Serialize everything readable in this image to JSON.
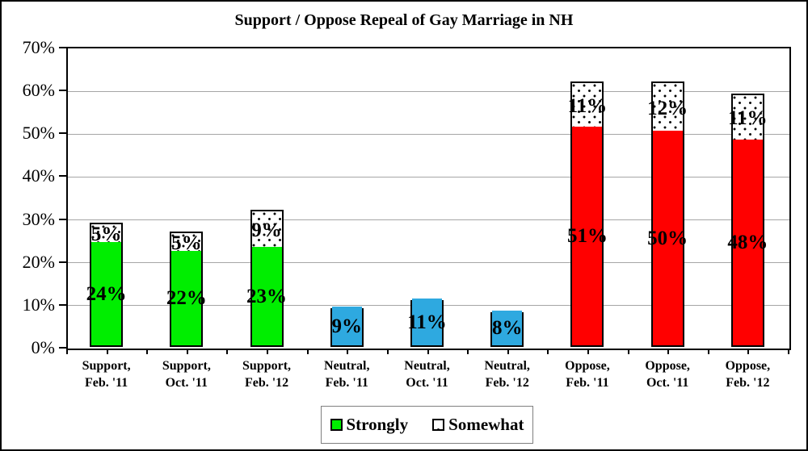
{
  "chart_data": {
    "type": "bar",
    "stacked": true,
    "title": "Support / Oppose Repeal of Gay Marriage in NH",
    "ylim": [
      0,
      70
    ],
    "y_tick_step": 10,
    "grid": true,
    "y_axis": {
      "tick_labels": [
        "0%",
        "10%",
        "20%",
        "30%",
        "40%",
        "50%",
        "60%",
        "70%"
      ]
    },
    "legend": {
      "position": "bottom",
      "items": [
        {
          "label": "Strongly",
          "swatch": "solid-green"
        },
        {
          "label": "Somewhat",
          "swatch": "dotted-white"
        }
      ]
    },
    "series_names": [
      "Strongly",
      "Somewhat"
    ],
    "categories": [
      "Support, Feb. '11",
      "Support, Oct. '11",
      "Support, Feb. '12",
      "Neutral, Feb. '11",
      "Neutral, Oct. '11",
      "Neutral, Feb. '12",
      "Oppose, Feb. '11",
      "Oppose, Oct. '11",
      "Oppose, Feb. '12"
    ],
    "bars": [
      {
        "label_top": "Support,",
        "label_bottom": "Feb. '11",
        "group": "support",
        "strongly": 24,
        "somewhat": 5,
        "strongly_label": "24%",
        "somewhat_label": "5%",
        "fill": "#00ee00"
      },
      {
        "label_top": "Support,",
        "label_bottom": "Oct. '11",
        "group": "support",
        "strongly": 22,
        "somewhat": 5,
        "strongly_label": "22%",
        "somewhat_label": "5%",
        "fill": "#00ee00"
      },
      {
        "label_top": "Support,",
        "label_bottom": "Feb. '12",
        "group": "support",
        "strongly": 23,
        "somewhat": 9,
        "strongly_label": "23%",
        "somewhat_label": "9%",
        "fill": "#00ee00"
      },
      {
        "label_top": "Neutral,",
        "label_bottom": "Feb. '11",
        "group": "neutral",
        "strongly": 9,
        "somewhat": 0,
        "strongly_label": "9%",
        "somewhat_label": "",
        "fill": "#2ea9e0"
      },
      {
        "label_top": "Neutral,",
        "label_bottom": "Oct. '11",
        "group": "neutral",
        "strongly": 11,
        "somewhat": 0,
        "strongly_label": "11%",
        "somewhat_label": "",
        "fill": "#2ea9e0"
      },
      {
        "label_top": "Neutral,",
        "label_bottom": "Feb. '12",
        "group": "neutral",
        "strongly": 8,
        "somewhat": 0,
        "strongly_label": "8%",
        "somewhat_label": "",
        "fill": "#2ea9e0"
      },
      {
        "label_top": "Oppose,",
        "label_bottom": "Feb. '11",
        "group": "oppose",
        "strongly": 51,
        "somewhat": 11,
        "strongly_label": "51%",
        "somewhat_label": "11%",
        "fill": "#ff0000"
      },
      {
        "label_top": "Oppose,",
        "label_bottom": "Oct. '11",
        "group": "oppose",
        "strongly": 50,
        "somewhat": 12,
        "strongly_label": "50%",
        "somewhat_label": "12%",
        "fill": "#ff0000"
      },
      {
        "label_top": "Oppose,",
        "label_bottom": "Feb. '12",
        "group": "oppose",
        "strongly": 48,
        "somewhat": 11,
        "strongly_label": "48%",
        "somewhat_label": "11%",
        "fill": "#ff0000"
      }
    ],
    "colors": {
      "strongly_support": "#00ee00",
      "neutral": "#2ea9e0",
      "strongly_oppose": "#ff0000",
      "somewhat_fill": "#ffffff",
      "somewhat_dots": "#000000",
      "gridline": "#a6a6a6",
      "axis": "#000000"
    }
  }
}
